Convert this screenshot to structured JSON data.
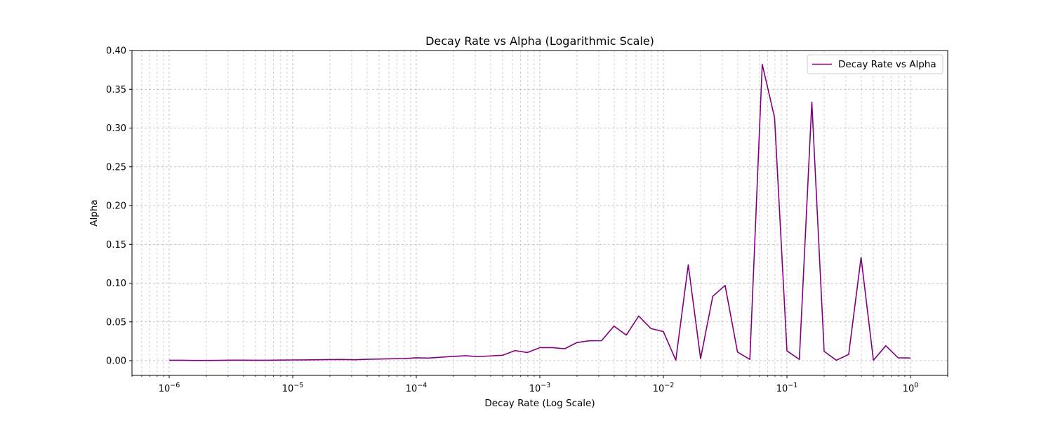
{
  "chart_data": {
    "type": "line",
    "title": "Decay Rate vs Alpha (Logarithmic Scale)",
    "xlabel": "Decay Rate (Log Scale)",
    "ylabel": "Alpha",
    "xscale": "log",
    "xlim": [
      5e-07,
      2
    ],
    "ylim": [
      -0.019,
      0.4
    ],
    "yticks": [
      0.0,
      0.05,
      0.1,
      0.15,
      0.2,
      0.25,
      0.3,
      0.35,
      0.4
    ],
    "ytick_labels": [
      "0.00",
      "0.05",
      "0.10",
      "0.15",
      "0.20",
      "0.25",
      "0.30",
      "0.35",
      "0.40"
    ],
    "xticks": [
      1e-06,
      1e-05,
      0.0001,
      0.001,
      0.01,
      0.1,
      1
    ],
    "xtick_bases": [
      "10",
      "10",
      "10",
      "10",
      "10",
      "10",
      "10"
    ],
    "xtick_exps": [
      "−6",
      "−5",
      "−4",
      "−3",
      "−2",
      "−1",
      "0"
    ],
    "grid": true,
    "legend_position": "top-right",
    "series": [
      {
        "name": "Decay Rate vs Alpha",
        "color": "#800080",
        "x": [
          1e-06,
          1.26e-06,
          1.59e-06,
          2e-06,
          2.51e-06,
          3.16e-06,
          3.98e-06,
          5.01e-06,
          6.31e-06,
          7.94e-06,
          1e-05,
          1.26e-05,
          1.59e-05,
          2e-05,
          2.51e-05,
          3.16e-05,
          3.98e-05,
          5.01e-05,
          6.31e-05,
          7.94e-05,
          0.0001,
          0.000126,
          0.000159,
          0.0002,
          0.000251,
          0.000316,
          0.000398,
          0.000501,
          0.000631,
          0.000794,
          0.001,
          0.00126,
          0.00159,
          0.002,
          0.00251,
          0.00316,
          0.00398,
          0.00501,
          0.00631,
          0.00794,
          0.01,
          0.0126,
          0.0159,
          0.02,
          0.0251,
          0.0316,
          0.0398,
          0.0501,
          0.0631,
          0.0794,
          0.1,
          0.126,
          0.159,
          0.2,
          0.251,
          0.316,
          0.398,
          0.501,
          0.631,
          0.794,
          1
        ],
        "y": [
          0.0005,
          0.0005,
          0.0003,
          0.0003,
          0.0004,
          0.0006,
          0.0006,
          0.0005,
          0.0005,
          0.0007,
          0.0009,
          0.001,
          0.0012,
          0.0014,
          0.0015,
          0.0012,
          0.0018,
          0.0021,
          0.0024,
          0.0027,
          0.0037,
          0.0033,
          0.0045,
          0.0055,
          0.0064,
          0.0052,
          0.0061,
          0.007,
          0.013,
          0.0105,
          0.0168,
          0.0168,
          0.0154,
          0.0234,
          0.0256,
          0.0258,
          0.0445,
          0.033,
          0.0575,
          0.0414,
          0.0375,
          0.0006,
          0.1236,
          0.0026,
          0.083,
          0.097,
          0.0111,
          0.0016,
          0.3822,
          0.3134,
          0.0126,
          0.0016,
          0.3334,
          0.012,
          0.0005,
          0.008,
          0.1332,
          0.0005,
          0.0193,
          0.0037,
          0.0035
        ]
      }
    ]
  }
}
